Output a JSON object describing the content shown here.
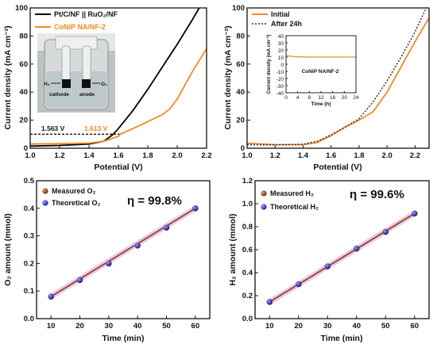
{
  "panels": {
    "a": {
      "xlabel": "Potential (V)",
      "ylabel": "Current density (mA cm⁻²)",
      "annotations": [
        {
          "text": "1.563 V",
          "color": "#111111"
        },
        {
          "text": "1.613 V",
          "color": "#f08a24"
        }
      ],
      "photo_labels": {
        "left_gas": "H₂",
        "right_gas": "O₂",
        "cathode": "cathode",
        "anode": "anode"
      }
    },
    "b": {
      "xlabel": "Potential (V)",
      "ylabel": "Current density (mA cm⁻²)",
      "inset": {
        "label": "CoNiP NA/NF-2",
        "xlabel": "Time (h)",
        "ylabel": "Current density (mA cm⁻²)"
      }
    },
    "c": {
      "xlabel": "Time (min)",
      "ylabel": "O₂ amount (mmol)",
      "eta_text": "η = 99.8%"
    },
    "d": {
      "xlabel": "Time (min)",
      "ylabel": "H₂ amount (mmol)",
      "eta_text": "η = 99.6%"
    }
  },
  "colors": {
    "black_series": "#000000",
    "orange_series": "#f08a24",
    "measured_line": "#8b3a1a",
    "theoretical_marker": "#3a3acc",
    "band": "#e8c8e8"
  },
  "chart_data": [
    {
      "type": "line",
      "panel": "a",
      "xlim": [
        1.0,
        2.2
      ],
      "ylim": [
        0,
        100
      ],
      "xticks": [
        1.0,
        1.2,
        1.4,
        1.6,
        1.8,
        2.0,
        2.2
      ],
      "yticks": [
        0,
        20,
        40,
        60,
        80,
        100
      ],
      "legend": "top-left",
      "reference_line_y": 10,
      "series": [
        {
          "name": "Pt/C/NF || RuO₂/NF",
          "color": "#000000",
          "x": [
            1.0,
            1.2,
            1.4,
            1.5,
            1.56,
            1.6,
            1.7,
            1.8,
            1.9,
            2.0,
            2.1,
            2.15
          ],
          "y": [
            1.5,
            2,
            3,
            5,
            9.5,
            14,
            27,
            42,
            58,
            74,
            91,
            100
          ]
        },
        {
          "name": "CoNiP NA/NF-2",
          "color": "#f08a24",
          "x": [
            1.0,
            1.2,
            1.4,
            1.5,
            1.6,
            1.613,
            1.7,
            1.8,
            1.9,
            1.95,
            2.0,
            2.1,
            2.2
          ],
          "y": [
            3,
            3.2,
            3.6,
            5,
            8.5,
            10,
            14,
            19,
            24,
            28,
            35,
            54,
            71
          ]
        }
      ]
    },
    {
      "type": "line",
      "panel": "b",
      "xlim": [
        1.0,
        2.3
      ],
      "ylim": [
        0,
        100
      ],
      "xticks": [
        1.0,
        1.2,
        1.4,
        1.6,
        1.8,
        2.0,
        2.2
      ],
      "yticks": [
        0,
        20,
        40,
        60,
        80,
        100
      ],
      "legend": "top-left",
      "series": [
        {
          "name": "Initial",
          "color": "#f08a24",
          "style": "solid",
          "x": [
            1.0,
            1.2,
            1.4,
            1.5,
            1.6,
            1.7,
            1.8,
            1.9,
            2.0,
            2.1,
            2.2,
            2.3
          ],
          "y": [
            3.5,
            2.6,
            2.5,
            4,
            9,
            15,
            20,
            26,
            40,
            58,
            76,
            93
          ]
        },
        {
          "name": "After 24h",
          "color": "#333333",
          "style": "dotted",
          "x": [
            1.0,
            1.2,
            1.4,
            1.5,
            1.6,
            1.7,
            1.8,
            1.9,
            2.0,
            2.1,
            2.2,
            2.28
          ],
          "y": [
            2.5,
            2.4,
            2.8,
            5,
            9.5,
            15,
            21,
            33,
            48,
            65,
            83,
            100
          ]
        }
      ],
      "inset": {
        "xlim": [
          0,
          24
        ],
        "ylim": [
          -40,
          40
        ],
        "xticks": [
          0,
          4,
          8,
          12,
          16,
          20,
          24
        ],
        "yticks": [
          -40,
          -30,
          -20,
          -10,
          0,
          10,
          20,
          30,
          40
        ],
        "series": [
          {
            "name": "CoNiP NA/NF-2",
            "color": "#f08a24",
            "x": [
              0,
              2,
              4,
              8,
              12,
              16,
              20,
              24
            ],
            "y": [
              12,
              11,
              10.5,
              10,
              10,
              10,
              10,
              10
            ]
          }
        ]
      }
    },
    {
      "type": "scatter",
      "panel": "c",
      "xlim": [
        5,
        65
      ],
      "ylim": [
        0.0,
        0.5
      ],
      "xticks": [
        10,
        20,
        30,
        40,
        50,
        60
      ],
      "yticks": [
        0.0,
        0.1,
        0.2,
        0.3,
        0.4,
        0.5
      ],
      "legend": "top-left",
      "series": [
        {
          "name": "Measured O₂",
          "marker_color": "#8b3a1a",
          "x": [
            10,
            20,
            30,
            40,
            50,
            60
          ],
          "y": [
            0.08,
            0.14,
            0.2,
            0.265,
            0.33,
            0.4
          ]
        },
        {
          "name": "Theoretical O₂",
          "marker_color": "#3a3acc",
          "x": [
            10,
            20,
            30,
            40,
            50,
            60
          ],
          "y": [
            0.08,
            0.14,
            0.2,
            0.265,
            0.33,
            0.4
          ]
        }
      ]
    },
    {
      "type": "scatter",
      "panel": "d",
      "xlim": [
        5,
        65
      ],
      "ylim": [
        0.0,
        1.2
      ],
      "xticks": [
        10,
        20,
        30,
        40,
        50,
        60
      ],
      "yticks": [
        0.0,
        0.2,
        0.4,
        0.6,
        0.8,
        1.0,
        1.2
      ],
      "legend": "top-left",
      "series": [
        {
          "name": "Measured  H₂",
          "marker_color": "#8b3a1a",
          "x": [
            10,
            20,
            30,
            40,
            50,
            60
          ],
          "y": [
            0.145,
            0.3,
            0.455,
            0.61,
            0.755,
            0.915
          ]
        },
        {
          "name": "Theoretical H₂",
          "marker_color": "#3a3acc",
          "x": [
            10,
            20,
            30,
            40,
            50,
            60
          ],
          "y": [
            0.145,
            0.3,
            0.455,
            0.61,
            0.755,
            0.915
          ]
        }
      ]
    }
  ]
}
